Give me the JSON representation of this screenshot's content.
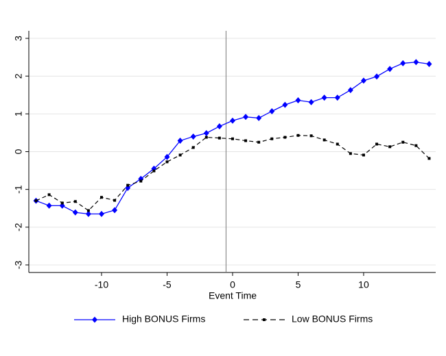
{
  "chart_data": {
    "type": "line",
    "x_label": "Event Time",
    "x": [
      -15,
      -14,
      -13,
      -12,
      -11,
      -10,
      -9,
      -8,
      -7,
      -6,
      -5,
      -4,
      -3,
      -2,
      -1,
      0,
      1,
      2,
      3,
      4,
      5,
      6,
      7,
      8,
      9,
      10,
      11,
      12,
      13,
      14,
      15
    ],
    "series": [
      {
        "name": "High BONUS Firms",
        "color": "#0000ff",
        "marker": "diamond",
        "dash": false,
        "values": [
          -1.3,
          -1.43,
          -1.43,
          -1.61,
          -1.65,
          -1.65,
          -1.55,
          -0.96,
          -0.72,
          -0.45,
          -0.14,
          0.29,
          0.4,
          0.49,
          0.67,
          0.82,
          0.92,
          0.89,
          1.07,
          1.24,
          1.36,
          1.31,
          1.43,
          1.43,
          1.63,
          1.88,
          1.99,
          2.19,
          2.34,
          2.37,
          2.32
        ]
      },
      {
        "name": "Low BONUS Firms",
        "color": "#000000",
        "marker": "square",
        "dash": true,
        "values": [
          -1.3,
          -1.14,
          -1.36,
          -1.32,
          -1.56,
          -1.21,
          -1.29,
          -0.89,
          -0.78,
          -0.51,
          -0.27,
          -0.09,
          0.11,
          0.38,
          0.36,
          0.34,
          0.29,
          0.25,
          0.34,
          0.38,
          0.43,
          0.42,
          0.31,
          0.2,
          -0.05,
          -0.09,
          0.2,
          0.13,
          0.25,
          0.16,
          -0.18
        ]
      }
    ],
    "xlim": [
      -15.55,
      15.5
    ],
    "xticks": [
      -10,
      -5,
      0,
      5,
      10
    ],
    "ylim": [
      -3.2,
      3.2
    ],
    "yticks": [
      -3,
      -2,
      -1,
      0,
      1,
      2,
      3
    ],
    "vline": -0.5,
    "grid": true,
    "legend": "bottom"
  }
}
